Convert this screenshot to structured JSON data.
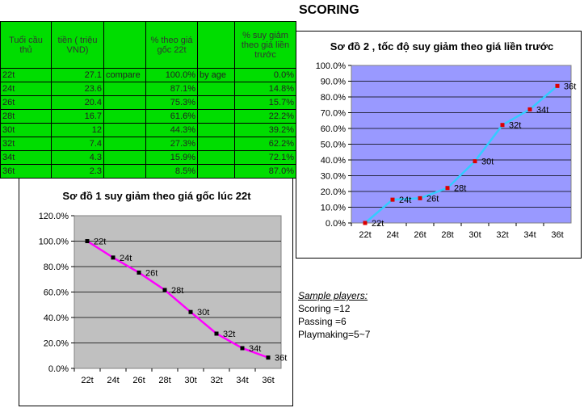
{
  "title": "SCORING",
  "table": {
    "headers": [
      "Tuổi cầu thủ",
      "tiền ( triệu VND)",
      "",
      "% theo giá gốc 22t",
      "",
      "% suy giảm theo giá liền trước"
    ],
    "rows": [
      {
        "age": "22t",
        "price": "27.1",
        "c2": "compare",
        "pct": "100.0%",
        "c4": "by age",
        "dec": "0.0%"
      },
      {
        "age": "24t",
        "price": "23.6",
        "c2": "",
        "pct": "87.1%",
        "c4": "",
        "dec": "14.8%"
      },
      {
        "age": "26t",
        "price": "20.4",
        "c2": "",
        "pct": "75.3%",
        "c4": "",
        "dec": "15.7%"
      },
      {
        "age": "28t",
        "price": "16.7",
        "c2": "",
        "pct": "61.6%",
        "c4": "",
        "dec": "22.2%"
      },
      {
        "age": "30t",
        "price": "12",
        "c2": "",
        "pct": "44.3%",
        "c4": "",
        "dec": "39.2%"
      },
      {
        "age": "32t",
        "price": "7.4",
        "c2": "",
        "pct": "27.3%",
        "c4": "",
        "dec": "62.2%"
      },
      {
        "age": "34t",
        "price": "4.3",
        "c2": "",
        "pct": "15.9%",
        "c4": "",
        "dec": "72.1%"
      },
      {
        "age": "36t",
        "price": "2.3",
        "c2": "",
        "pct": "8.5%",
        "c4": "",
        "dec": "87.0%"
      }
    ]
  },
  "chart_data": [
    {
      "type": "line",
      "title": "Sơ đồ 2 , tốc độ suy giảm theo giá liền trước",
      "categories": [
        "22t",
        "24t",
        "26t",
        "28t",
        "30t",
        "32t",
        "34t",
        "36t"
      ],
      "values": [
        0.0,
        14.8,
        15.7,
        22.2,
        39.2,
        62.2,
        72.1,
        87.0
      ],
      "data_labels": [
        "22t",
        "24t",
        "26t",
        "28t",
        "30t",
        "32t",
        "34t",
        "36t"
      ],
      "yticks": [
        "0.0%",
        "10.0%",
        "20.0%",
        "30.0%",
        "40.0%",
        "50.0%",
        "60.0%",
        "70.0%",
        "80.0%",
        "90.0%",
        "100.0%"
      ],
      "ylim": [
        0,
        100
      ],
      "plot_bg": "#9999ff",
      "line_color": "#33ccff",
      "marker_color": "#dd0000",
      "grid": true
    },
    {
      "type": "line",
      "title": "Sơ đồ 1 suy giảm theo giá gốc lúc 22t",
      "categories": [
        "22t",
        "24t",
        "26t",
        "28t",
        "30t",
        "32t",
        "34t",
        "36t"
      ],
      "values": [
        100.0,
        87.1,
        75.3,
        61.6,
        44.3,
        27.3,
        15.9,
        8.5
      ],
      "data_labels": [
        "22t",
        "24t",
        "26t",
        "28t",
        "30t",
        "32t",
        "34t",
        "36t"
      ],
      "yticks": [
        "0.0%",
        "20.0%",
        "40.0%",
        "60.0%",
        "80.0%",
        "100.0%",
        "120.0%"
      ],
      "ylim": [
        0,
        120
      ],
      "plot_bg": "#c0c0c0",
      "line_color": "#ff00ff",
      "marker_color": "#000000",
      "grid": true
    }
  ],
  "notes": {
    "heading": "Sample players:",
    "lines": [
      "Scoring =12",
      "Passing =6",
      "Playmaking=5~7"
    ]
  }
}
